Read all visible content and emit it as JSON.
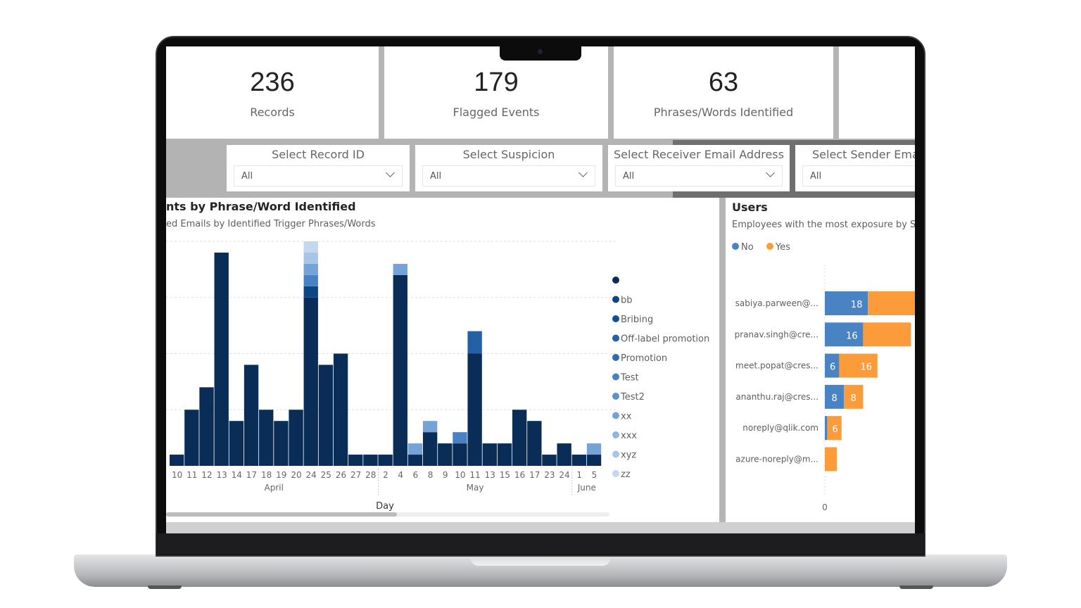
{
  "kpis": [
    {
      "value": "236",
      "label": "Records"
    },
    {
      "value": "179",
      "label": "Flagged Events"
    },
    {
      "value": "63",
      "label": "Phrases/Words Identified"
    }
  ],
  "slicers": [
    {
      "title": "Select Record ID",
      "value": "All"
    },
    {
      "title": "Select Suspicion",
      "value": "All"
    },
    {
      "title": "Select Receiver Email Address",
      "value": "All"
    },
    {
      "title": "Select Sender Email",
      "value": "All"
    }
  ],
  "chart_data": [
    {
      "type": "bar",
      "stacked": true,
      "title": "nts by Phrase/Word Identified",
      "subtitle": "ed Emails by Identified Trigger Phrases/Words",
      "xlabel": "Day",
      "ylim": [
        0,
        20
      ],
      "grid": true,
      "legend_position": "right",
      "categories": [
        "10",
        "11",
        "12",
        "13",
        "14",
        "17",
        "18",
        "19",
        "20",
        "24",
        "25",
        "26",
        "27",
        "28",
        "2",
        "4",
        "6",
        "8",
        "9",
        "10",
        "11",
        "13",
        "15",
        "16",
        "17",
        "23",
        "24",
        "1",
        "5"
      ],
      "months": [
        {
          "label": "April",
          "count": 14
        },
        {
          "label": "May",
          "count": 13
        },
        {
          "label": "June",
          "count": 2
        }
      ],
      "series": [
        {
          "name": "",
          "color": "#0a2d57",
          "values": [
            1,
            5,
            7,
            19,
            4,
            9,
            5,
            4,
            5,
            15,
            9,
            10,
            1,
            1,
            1,
            17,
            1,
            3,
            2,
            2,
            10,
            2,
            2,
            5,
            4,
            1,
            2,
            1,
            1
          ]
        },
        {
          "name": "bb",
          "color": "#0d4585",
          "points": {
            "9": 1
          }
        },
        {
          "name": "Bribing",
          "color": "#124f92"
        },
        {
          "name": "Off-label promotion",
          "color": "#2360a6",
          "points": {
            "20": 2
          }
        },
        {
          "name": "Promotion",
          "color": "#2f6bb0"
        },
        {
          "name": "Test",
          "color": "#4682c4",
          "points": {
            "9": 1,
            "19": 1
          }
        },
        {
          "name": "Test2",
          "color": "#5a90cd"
        },
        {
          "name": "xx",
          "color": "#74a3d7",
          "points": {
            "9": 1,
            "15": 1,
            "16": 1,
            "17": 1,
            "28": 1
          }
        },
        {
          "name": "xxx",
          "color": "#8fb5e0"
        },
        {
          "name": "xyz",
          "color": "#a6c5e7",
          "points": {
            "9": 1
          }
        },
        {
          "name": "zz",
          "color": "#c3d7ee",
          "points": {
            "9": 1
          }
        }
      ]
    },
    {
      "type": "bar",
      "orientation": "horizontal",
      "stacked": true,
      "title": "Users",
      "subtitle": "Employees with the most exposure by Sus",
      "xlabel_tick": "0",
      "legend_position": "top-left",
      "categories": [
        "sabiya.parween@...",
        "pranav.singh@cre...",
        "meet.popat@cres...",
        "ananthu.raj@cres...",
        "noreply@qlik.com",
        "azure-noreply@m..."
      ],
      "series": [
        {
          "name": "No",
          "color": "#4a83c4",
          "values": [
            18,
            16,
            6,
            8,
            1,
            0
          ]
        },
        {
          "name": "Yes",
          "color": "#fb9b3a",
          "values": [
            20,
            20,
            16,
            8,
            6,
            5
          ]
        }
      ],
      "data_labels": [
        [
          "18",
          ""
        ],
        [
          "16",
          ""
        ],
        [
          "6",
          "16"
        ],
        [
          "8",
          "8"
        ],
        [
          "",
          "6"
        ],
        [
          "",
          ""
        ]
      ]
    }
  ]
}
